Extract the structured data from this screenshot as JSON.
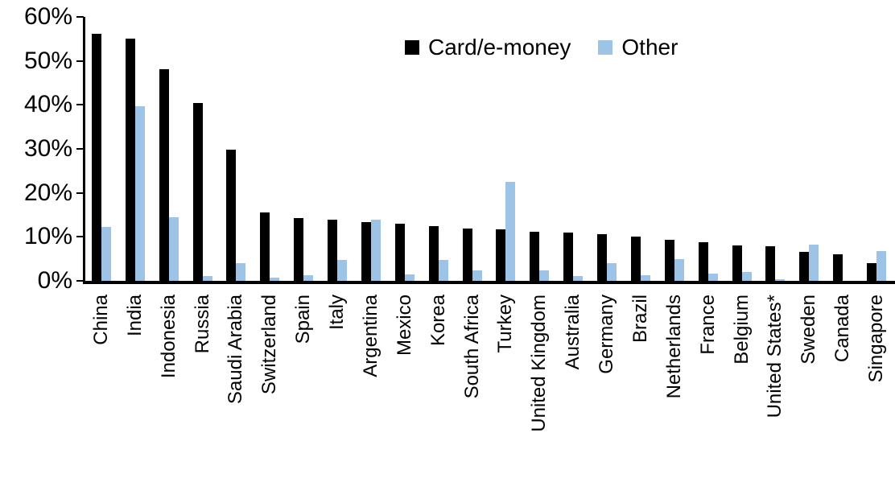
{
  "chart_data": {
    "type": "bar",
    "title": "",
    "xlabel": "",
    "ylabel": "",
    "ylim": [
      0,
      60
    ],
    "ytick_step": 10,
    "ytick_labels": [
      "0%",
      "10%",
      "20%",
      "30%",
      "40%",
      "50%",
      "60%"
    ],
    "grid": false,
    "legend_position": "top-center",
    "categories": [
      "China",
      "India",
      "Indonesia",
      "Russia",
      "Saudi Arabia",
      "Switzerland",
      "Spain",
      "Italy",
      "Argentina",
      "Mexico",
      "Korea",
      "South Africa",
      "Turkey",
      "United Kingdom",
      "Australia",
      "Germany",
      "Brazil",
      "Netherlands",
      "France",
      "Belgium",
      "United States*",
      "Sweden",
      "Canada",
      "Singapore"
    ],
    "series": [
      {
        "name": "Card/e-money",
        "color": "#000000",
        "values": [
          56.2,
          55.0,
          48.1,
          40.5,
          29.9,
          15.6,
          14.2,
          14.0,
          13.4,
          13.0,
          12.4,
          11.9,
          11.7,
          11.2,
          11.0,
          10.7,
          10.1,
          9.3,
          8.7,
          8.1,
          7.9,
          6.6,
          6.0,
          4.0
        ]
      },
      {
        "name": "Other",
        "color": "#9DC3E6",
        "values": [
          12.3,
          39.7,
          14.5,
          1.1,
          4.0,
          0.8,
          1.2,
          4.8,
          13.9,
          1.4,
          4.7,
          2.4,
          22.5,
          2.4,
          1.1,
          4.0,
          1.3,
          4.9,
          1.6,
          2.0,
          0.4,
          8.2,
          0.0,
          6.7
        ]
      }
    ],
    "colors": {
      "axis": "#000000",
      "background": "#ffffff"
    }
  }
}
